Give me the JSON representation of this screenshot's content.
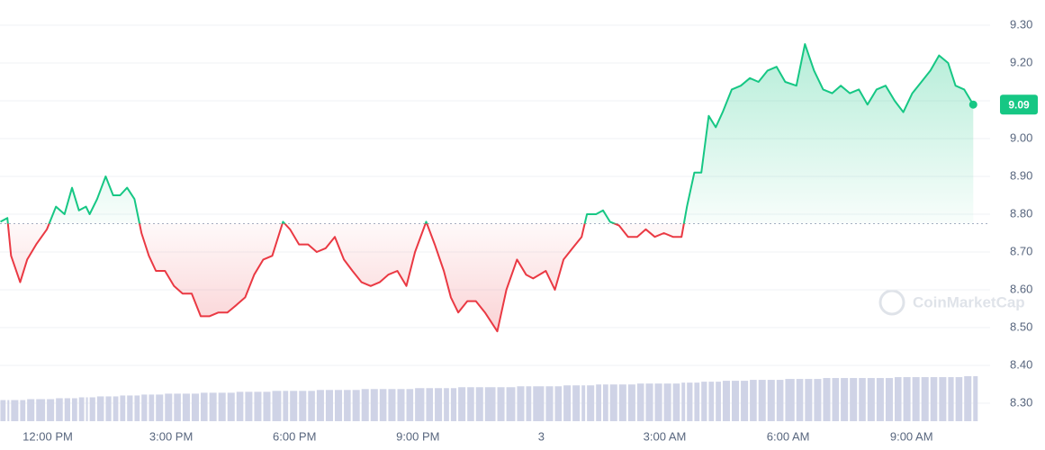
{
  "chart_data": {
    "type": "line",
    "x": [
      -1.15,
      -0.98,
      -0.89,
      -0.67,
      -0.5,
      -0.28,
      -0.02,
      0.2,
      0.41,
      0.59,
      0.76,
      0.93,
      1.02,
      1.2,
      1.41,
      1.59,
      1.76,
      1.93,
      2.11,
      2.28,
      2.46,
      2.63,
      2.85,
      3.07,
      3.28,
      3.5,
      3.72,
      3.93,
      4.15,
      4.37,
      4.59,
      4.8,
      5.02,
      5.24,
      5.46,
      5.72,
      5.89,
      6.11,
      6.33,
      6.54,
      6.76,
      6.98,
      7.2,
      7.41,
      7.63,
      7.85,
      8.07,
      8.28,
      8.5,
      8.72,
      8.93,
      9.2,
      9.41,
      9.63,
      9.8,
      9.98,
      10.2,
      10.41,
      10.63,
      10.93,
      11.15,
      11.41,
      11.63,
      11.8,
      12.11,
      12.33,
      12.54,
      12.76,
      12.98,
      13.11,
      13.33,
      13.5,
      13.67,
      13.89,
      14.11,
      14.33,
      14.54,
      14.76,
      14.98,
      15.2,
      15.41,
      15.54,
      15.72,
      15.89,
      16.07,
      16.24,
      16.41,
      16.63,
      16.85,
      17.07,
      17.28,
      17.5,
      17.72,
      17.93,
      18.2,
      18.41,
      18.63,
      18.85,
      19.07,
      19.28,
      19.5,
      19.72,
      19.93,
      20.15,
      20.37,
      20.59,
      20.8,
      21.02,
      21.24,
      21.46,
      21.67,
      21.89,
      22.07,
      22.28,
      22.5
    ],
    "values": [
      8.78,
      8.79,
      8.69,
      8.62,
      8.68,
      8.72,
      8.76,
      8.82,
      8.8,
      8.87,
      8.81,
      8.82,
      8.8,
      8.84,
      8.9,
      8.85,
      8.85,
      8.87,
      8.84,
      8.75,
      8.69,
      8.65,
      8.65,
      8.61,
      8.59,
      8.59,
      8.53,
      8.53,
      8.54,
      8.54,
      8.56,
      8.58,
      8.64,
      8.68,
      8.69,
      8.78,
      8.76,
      8.72,
      8.72,
      8.7,
      8.71,
      8.74,
      8.68,
      8.65,
      8.62,
      8.61,
      8.62,
      8.64,
      8.65,
      8.61,
      8.7,
      8.78,
      8.72,
      8.65,
      8.58,
      8.54,
      8.57,
      8.57,
      8.54,
      8.49,
      8.6,
      8.68,
      8.64,
      8.63,
      8.65,
      8.6,
      8.68,
      8.71,
      8.74,
      8.8,
      8.8,
      8.81,
      8.78,
      8.77,
      8.74,
      8.74,
      8.76,
      8.74,
      8.75,
      8.74,
      8.74,
      8.82,
      8.91,
      8.91,
      9.06,
      9.03,
      9.07,
      9.13,
      9.14,
      9.16,
      9.15,
      9.18,
      9.19,
      9.15,
      9.14,
      9.25,
      9.18,
      9.13,
      9.12,
      9.14,
      9.12,
      9.13,
      9.09,
      9.13,
      9.14,
      9.1,
      9.07,
      9.12,
      9.15,
      9.18,
      9.22,
      9.2,
      9.14,
      9.13,
      9.09
    ],
    "volume": [
      23,
      23,
      23,
      23,
      24,
      24,
      24,
      25,
      25,
      25,
      26,
      26,
      26,
      27,
      27,
      27,
      28,
      28,
      28,
      29,
      29,
      29,
      30,
      30,
      30,
      30,
      31,
      31,
      31,
      31,
      32,
      32,
      32,
      32,
      33,
      33,
      33,
      33,
      33,
      34,
      34,
      34,
      34,
      34,
      35,
      35,
      35,
      35,
      35,
      35,
      36,
      36,
      36,
      36,
      36,
      37,
      37,
      37,
      37,
      37,
      37,
      38,
      38,
      38,
      38,
      38,
      39,
      39,
      39,
      39,
      40,
      40,
      40,
      40,
      40,
      41,
      41,
      41,
      41,
      41,
      42,
      42,
      42,
      43,
      43,
      43,
      44,
      44,
      44,
      45,
      45,
      45,
      45,
      46,
      46,
      46,
      46,
      47,
      47,
      47,
      47,
      47,
      47,
      47,
      47,
      48,
      48,
      48,
      48,
      48,
      48,
      48,
      48,
      49,
      49
    ],
    "baseline": 8.775,
    "up_color": "#16c784",
    "down_color": "#ea3943",
    "volume_color": "#cfd3e6",
    "xlim": [
      -1.16,
      22.91
    ],
    "xticks": [
      {
        "value": 0,
        "label": "12:00 PM"
      },
      {
        "value": 3,
        "label": "3:00 PM"
      },
      {
        "value": 6,
        "label": "6:00 PM"
      },
      {
        "value": 9,
        "label": "9:00 PM"
      },
      {
        "value": 12,
        "label": "3"
      },
      {
        "value": 15,
        "label": "3:00 AM"
      },
      {
        "value": 18,
        "label": "6:00 AM"
      },
      {
        "value": 21,
        "label": "9:00 AM"
      }
    ],
    "ylim": [
      8.3,
      9.3
    ],
    "yticks": [
      {
        "value": 8.3,
        "label": "8.30"
      },
      {
        "value": 8.4,
        "label": "8.40"
      },
      {
        "value": 8.5,
        "label": "8.50"
      },
      {
        "value": 8.6,
        "label": "8.60"
      },
      {
        "value": 8.7,
        "label": "8.70"
      },
      {
        "value": 8.8,
        "label": "8.80"
      },
      {
        "value": 8.9,
        "label": "8.90"
      },
      {
        "value": 9.0,
        "label": "9.00"
      },
      {
        "value": 9.1,
        "label": "9.10"
      },
      {
        "value": 9.2,
        "label": "9.20"
      },
      {
        "value": 9.3,
        "label": "9.30"
      }
    ],
    "grid": true,
    "watermark": "CoinMarketCap"
  }
}
